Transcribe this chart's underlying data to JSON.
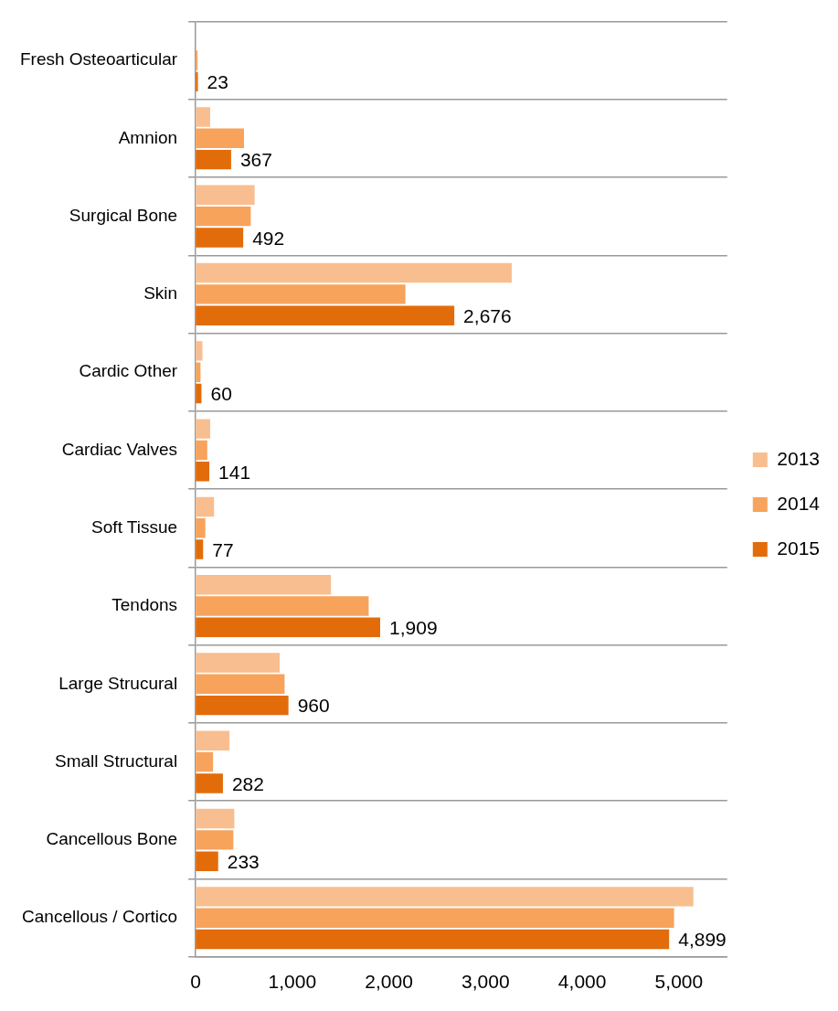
{
  "chart_data": {
    "type": "bar",
    "orientation": "horizontal",
    "categories": [
      "Fresh Osteoarticular",
      "Amnion",
      "Surgical Bone",
      "Skin",
      "Cardic Other",
      "Cardiac Valves",
      "Soft Tissue",
      "Tendons",
      "Large Strucural",
      "Small Structural",
      "Cancellous Bone",
      "Cancellous / Cortico"
    ],
    "series": [
      {
        "name": "2013",
        "color": "#f9be8f",
        "values": [
          null,
          150,
          610,
          3270,
          70,
          150,
          190,
          1400,
          870,
          350,
          400,
          5150
        ]
      },
      {
        "name": "2014",
        "color": "#f7a35c",
        "values": [
          20,
          500,
          570,
          2170,
          50,
          120,
          100,
          1790,
          920,
          180,
          390,
          4950
        ]
      },
      {
        "name": "2015",
        "color": "#e36c0a",
        "values": [
          23,
          367,
          492,
          2676,
          60,
          141,
          77,
          1909,
          960,
          282,
          233,
          4899
        ],
        "value_labels": [
          "23",
          "367",
          "492",
          "2,676",
          "60",
          "141",
          "77",
          "1,909",
          "960",
          "282",
          "233",
          "4,899"
        ]
      }
    ],
    "xlim": [
      0,
      5500
    ],
    "xticks": [
      {
        "value": 0,
        "label": "0"
      },
      {
        "value": 1000,
        "label": "1,000"
      },
      {
        "value": 2000,
        "label": "2,000"
      },
      {
        "value": 3000,
        "label": "3,000"
      },
      {
        "value": 4000,
        "label": "4,000"
      },
      {
        "value": 5000,
        "label": "5,000"
      }
    ],
    "grid": "y",
    "legend": "right"
  }
}
